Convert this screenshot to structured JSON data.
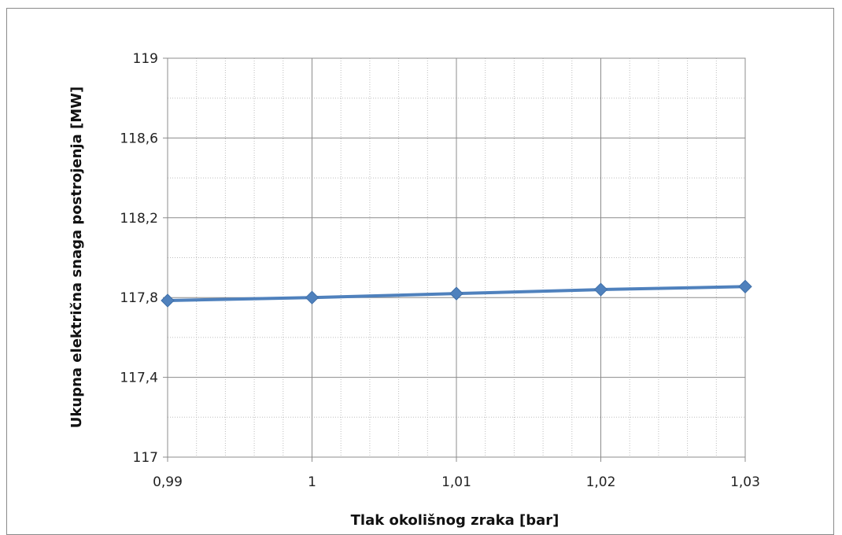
{
  "chart_data": {
    "type": "line",
    "title": "",
    "xlabel": "Tlak okolišnog zraka [bar]",
    "ylabel": "Ukupna električna snaga postrojenja  [MW]",
    "x": [
      0.99,
      1.0,
      1.01,
      1.02,
      1.03
    ],
    "x_tick_labels": [
      "0,99",
      "1",
      "1,01",
      "1,02",
      "1,03"
    ],
    "y_ticks": [
      117,
      117.4,
      117.8,
      118.2,
      118.6,
      119
    ],
    "y_tick_labels": [
      "117",
      "117,4",
      "117,8",
      "118,2",
      "118,6",
      "119"
    ],
    "xlim": [
      0.99,
      1.03
    ],
    "ylim": [
      117,
      119
    ],
    "grid": true,
    "legend": "none",
    "series": [
      {
        "values": [
          117.785,
          117.8,
          117.82,
          117.84,
          117.855
        ],
        "color": "#4f81bd",
        "marker": "diamond"
      }
    ]
  }
}
